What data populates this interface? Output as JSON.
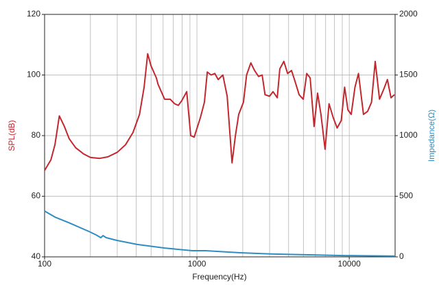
{
  "chart_data": {
    "type": "line",
    "xlabel": "Frequency(Hz)",
    "ylabel": "SPL(dB)",
    "y2label": "Impedance(Ω)",
    "xscale": "log",
    "xlim": [
      100,
      20000
    ],
    "xticks": [
      100,
      1000,
      10000
    ],
    "xminor": [
      200,
      300,
      400,
      500,
      600,
      700,
      800,
      900,
      2000,
      3000,
      4000,
      5000,
      6000,
      7000,
      8000,
      9000,
      20000
    ],
    "ylim": [
      40,
      120
    ],
    "yticks": [
      40,
      60,
      80,
      100,
      120
    ],
    "y2lim": [
      0,
      2000
    ],
    "y2ticks": [
      0,
      500,
      1000,
      1500,
      2000
    ],
    "grid": true,
    "series": [
      {
        "name": "SPL(dB)",
        "color": "#c1272d",
        "x": [
          100,
          110,
          117,
          125,
          135,
          145,
          160,
          180,
          200,
          230,
          260,
          300,
          340,
          380,
          420,
          450,
          475,
          500,
          542,
          555,
          614,
          668,
          714,
          755,
          795,
          857,
          910,
          960,
          1055,
          1120,
          1170,
          1240,
          1310,
          1380,
          1480,
          1580,
          1700,
          1790,
          1880,
          2020,
          2120,
          2260,
          2390,
          2540,
          2680,
          2800,
          3000,
          3160,
          3370,
          3500,
          3720,
          3940,
          4180,
          4400,
          4690,
          4990,
          5260,
          5540,
          5880,
          6200,
          6520,
          6940,
          7370,
          7840,
          8330,
          8860,
          9320,
          9800,
          10300,
          10900,
          11500,
          12400,
          13200,
          14000,
          14800,
          15800,
          16900,
          17800,
          18800,
          19800
        ],
        "values": [
          68.5,
          72,
          77,
          86.5,
          83,
          79,
          76,
          74,
          72.8,
          72.5,
          73,
          74.5,
          77,
          81,
          87,
          96,
          107,
          103,
          99,
          97,
          92,
          92,
          90.5,
          90,
          91.5,
          94.5,
          80,
          79.5,
          86,
          91,
          101,
          100,
          100.5,
          98.5,
          100,
          93,
          71,
          80,
          87,
          91,
          100,
          104,
          101.5,
          99.5,
          100,
          93.5,
          93,
          94.5,
          92.5,
          102,
          104.5,
          100.5,
          101.5,
          98,
          93.5,
          92,
          100.5,
          99,
          83,
          94,
          87,
          75.5,
          90.5,
          86,
          82.5,
          85,
          96,
          88.5,
          87,
          96,
          100.5,
          87,
          88,
          91,
          104.5,
          92,
          95.5,
          98.5,
          92.5,
          93.5
        ]
      },
      {
        "name": "Impedance(Ω)",
        "color": "#2f8cc2",
        "axis": "y2",
        "x": [
          100,
          117,
          144,
          196,
          218,
          234,
          242,
          254,
          297,
          406,
          614,
          930,
          1140,
          1920,
          3200,
          5440,
          9100,
          20000
        ],
        "values": [
          378,
          328,
          282,
          209,
          181,
          158,
          175,
          158,
          136,
          102,
          73,
          51,
          51,
          34,
          23,
          17,
          11,
          6
        ]
      }
    ]
  }
}
